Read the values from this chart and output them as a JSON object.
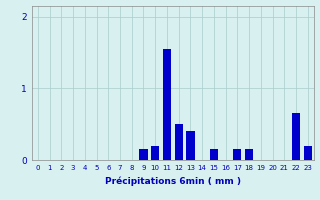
{
  "categories": [
    0,
    1,
    2,
    3,
    4,
    5,
    6,
    7,
    8,
    9,
    10,
    11,
    12,
    13,
    14,
    15,
    16,
    17,
    18,
    19,
    20,
    21,
    22,
    23
  ],
  "values": [
    0,
    0,
    0,
    0,
    0,
    0,
    0,
    0,
    0,
    0.15,
    0.2,
    1.55,
    0.5,
    0.4,
    0,
    0.15,
    0,
    0.15,
    0.15,
    0,
    0,
    0,
    0.65,
    0.2
  ],
  "bar_color": "#0000cc",
  "background_color": "#d8f0f0",
  "grid_color": "#aacccc",
  "axis_color": "#888888",
  "text_color": "#0000bb",
  "xlabel": "Précipitations 6min ( mm )",
  "ylim": [
    0,
    2.15
  ],
  "yticks": [
    0,
    1,
    2
  ],
  "xlim": [
    -0.5,
    23.5
  ]
}
